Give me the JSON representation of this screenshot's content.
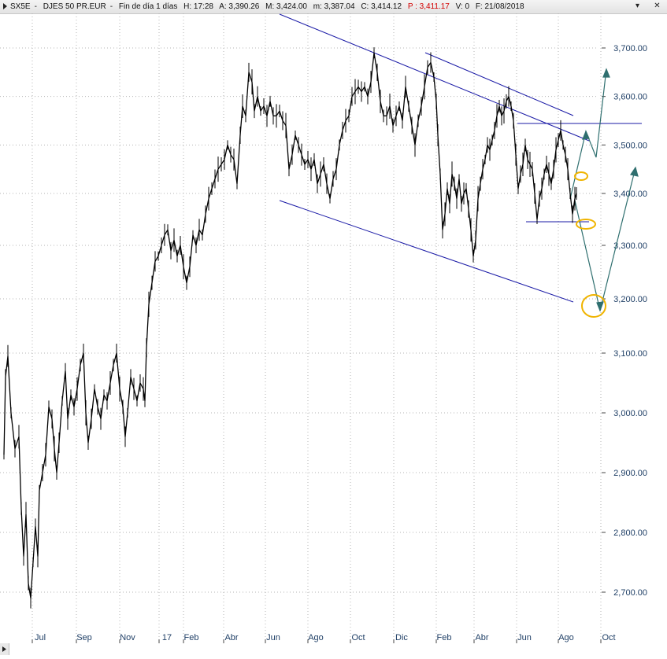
{
  "header": {
    "symbol": "SX5E",
    "name": "DJES 50 PR.EUR",
    "period": "Fin de día 1 días",
    "time": "H: 17:28",
    "open": "A: 3,390.26",
    "high": "M: 3,424.00",
    "low": "m: 3,387.04",
    "close": "C: 3,414.12",
    "last": "P : 3,411.17",
    "volume": "V: 0",
    "date": "F: 21/08/2018"
  },
  "window_buttons": {
    "minimize": "▾",
    "close": "✕"
  },
  "colors": {
    "price": "#000000",
    "trendline": "#1a1aa6",
    "projection": "#2f6f6f",
    "marker": "#f0b400",
    "grid": "#b4b4b4",
    "axis_text": "#1f3f66"
  },
  "chart_data": {
    "type": "line",
    "title": "",
    "xlabel": "",
    "ylabel": "",
    "ylim": [
      2650,
      3760
    ],
    "grid": true,
    "y_ticks": [
      "3,700.00",
      "3,600.00",
      "3,500.00",
      "3,400.00",
      "3,300.00",
      "3,200.00",
      "3,100.00",
      "3,000.00",
      "2,900.00",
      "2,800.00",
      "2,700.00"
    ],
    "x_ticks": [
      "Jul",
      "Sep",
      "Nov",
      "17",
      "Feb",
      "Abr",
      "Jun",
      "Ago",
      "Oct",
      "Dic",
      "Feb",
      "Abr",
      "Jun",
      "Ago",
      "Oct"
    ],
    "series": [
      {
        "values": [
          [
            0,
            2930
          ],
          [
            2,
            3060
          ],
          [
            5,
            3095
          ],
          [
            9,
            3000
          ],
          [
            14,
            2940
          ],
          [
            19,
            2960
          ],
          [
            22,
            2840
          ],
          [
            25,
            2760
          ],
          [
            28,
            2830
          ],
          [
            31,
            2715
          ],
          [
            34,
            2690
          ],
          [
            37,
            2750
          ],
          [
            40,
            2810
          ],
          [
            43,
            2760
          ],
          [
            45,
            2870
          ],
          [
            49,
            2900
          ],
          [
            53,
            2930
          ],
          [
            57,
            3010
          ],
          [
            61,
            2990
          ],
          [
            64,
            2940
          ],
          [
            67,
            2900
          ],
          [
            70,
            2950
          ],
          [
            74,
            3020
          ],
          [
            78,
            3070
          ],
          [
            81,
            2990
          ],
          [
            85,
            3030
          ],
          [
            89,
            3010
          ],
          [
            93,
            3040
          ],
          [
            97,
            3080
          ],
          [
            101,
            3100
          ],
          [
            104,
            3000
          ],
          [
            107,
            2950
          ],
          [
            111,
            2990
          ],
          [
            115,
            3040
          ],
          [
            119,
            3010
          ],
          [
            123,
            2990
          ],
          [
            127,
            3030
          ],
          [
            131,
            3020
          ],
          [
            135,
            3050
          ],
          [
            139,
            3080
          ],
          [
            143,
            3100
          ],
          [
            147,
            3040
          ],
          [
            151,
            3010
          ],
          [
            154,
            2960
          ],
          [
            157,
            3000
          ],
          [
            161,
            3060
          ],
          [
            165,
            3040
          ],
          [
            169,
            3020
          ],
          [
            173,
            3050
          ],
          [
            177,
            3040
          ],
          [
            179,
            3020
          ],
          [
            181,
            3110
          ],
          [
            184,
            3190
          ],
          [
            188,
            3230
          ],
          [
            192,
            3270
          ],
          [
            196,
            3280
          ],
          [
            200,
            3300
          ],
          [
            204,
            3320
          ],
          [
            208,
            3330
          ],
          [
            212,
            3290
          ],
          [
            216,
            3310
          ],
          [
            220,
            3280
          ],
          [
            224,
            3300
          ],
          [
            228,
            3260
          ],
          [
            232,
            3230
          ],
          [
            236,
            3260
          ],
          [
            240,
            3320
          ],
          [
            244,
            3300
          ],
          [
            248,
            3330
          ],
          [
            252,
            3320
          ],
          [
            256,
            3360
          ],
          [
            260,
            3390
          ],
          [
            264,
            3410
          ],
          [
            268,
            3430
          ],
          [
            272,
            3450
          ],
          [
            276,
            3460
          ],
          [
            280,
            3470
          ],
          [
            284,
            3500
          ],
          [
            288,
            3480
          ],
          [
            292,
            3470
          ],
          [
            296,
            3420
          ],
          [
            300,
            3520
          ],
          [
            303,
            3580
          ],
          [
            307,
            3560
          ],
          [
            311,
            3650
          ],
          [
            315,
            3630
          ],
          [
            318,
            3570
          ],
          [
            322,
            3600
          ],
          [
            326,
            3570
          ],
          [
            330,
            3580
          ],
          [
            334,
            3560
          ],
          [
            338,
            3590
          ],
          [
            342,
            3560
          ],
          [
            346,
            3560
          ],
          [
            350,
            3570
          ],
          [
            354,
            3550
          ],
          [
            358,
            3540
          ],
          [
            362,
            3450
          ],
          [
            366,
            3480
          ],
          [
            370,
            3520
          ],
          [
            374,
            3500
          ],
          [
            378,
            3480
          ],
          [
            382,
            3460
          ],
          [
            386,
            3470
          ],
          [
            390,
            3450
          ],
          [
            394,
            3470
          ],
          [
            398,
            3420
          ],
          [
            402,
            3440
          ],
          [
            406,
            3460
          ],
          [
            410,
            3420
          ],
          [
            414,
            3390
          ],
          [
            418,
            3430
          ],
          [
            422,
            3450
          ],
          [
            426,
            3500
          ],
          [
            430,
            3530
          ],
          [
            434,
            3550
          ],
          [
            438,
            3560
          ],
          [
            442,
            3600
          ],
          [
            446,
            3610
          ],
          [
            450,
            3620
          ],
          [
            454,
            3610
          ],
          [
            458,
            3620
          ],
          [
            462,
            3600
          ],
          [
            466,
            3630
          ],
          [
            470,
            3690
          ],
          [
            474,
            3650
          ],
          [
            478,
            3590
          ],
          [
            482,
            3560
          ],
          [
            486,
            3560
          ],
          [
            490,
            3580
          ],
          [
            494,
            3540
          ],
          [
            498,
            3560
          ],
          [
            502,
            3580
          ],
          [
            506,
            3550
          ],
          [
            510,
            3620
          ],
          [
            514,
            3580
          ],
          [
            518,
            3540
          ],
          [
            522,
            3500
          ],
          [
            526,
            3550
          ],
          [
            530,
            3580
          ],
          [
            534,
            3620
          ],
          [
            538,
            3660
          ],
          [
            542,
            3670
          ],
          [
            546,
            3640
          ],
          [
            549,
            3590
          ],
          [
            551,
            3520
          ],
          [
            554,
            3440
          ],
          [
            557,
            3330
          ],
          [
            560,
            3360
          ],
          [
            563,
            3410
          ],
          [
            566,
            3380
          ],
          [
            569,
            3440
          ],
          [
            572,
            3420
          ],
          [
            575,
            3390
          ],
          [
            578,
            3430
          ],
          [
            581,
            3380
          ],
          [
            584,
            3400
          ],
          [
            587,
            3410
          ],
          [
            590,
            3370
          ],
          [
            593,
            3330
          ],
          [
            596,
            3280
          ],
          [
            599,
            3310
          ],
          [
            602,
            3390
          ],
          [
            605,
            3420
          ],
          [
            608,
            3450
          ],
          [
            611,
            3470
          ],
          [
            614,
            3500
          ],
          [
            617,
            3490
          ],
          [
            620,
            3510
          ],
          [
            623,
            3530
          ],
          [
            626,
            3560
          ],
          [
            629,
            3580
          ],
          [
            632,
            3560
          ],
          [
            635,
            3570
          ],
          [
            638,
            3590
          ],
          [
            641,
            3600
          ],
          [
            644,
            3580
          ],
          [
            647,
            3550
          ],
          [
            650,
            3480
          ],
          [
            653,
            3410
          ],
          [
            656,
            3440
          ],
          [
            659,
            3460
          ],
          [
            662,
            3500
          ],
          [
            665,
            3470
          ],
          [
            668,
            3460
          ],
          [
            671,
            3450
          ],
          [
            674,
            3400
          ],
          [
            677,
            3350
          ],
          [
            680,
            3390
          ],
          [
            683,
            3410
          ],
          [
            686,
            3440
          ],
          [
            689,
            3460
          ],
          [
            692,
            3440
          ],
          [
            695,
            3420
          ],
          [
            698,
            3450
          ],
          [
            701,
            3490
          ],
          [
            704,
            3510
          ],
          [
            707,
            3530
          ],
          [
            710,
            3500
          ],
          [
            713,
            3480
          ],
          [
            716,
            3450
          ],
          [
            719,
            3400
          ],
          [
            722,
            3360
          ],
          [
            725,
            3390
          ],
          [
            727,
            3400
          ]
        ]
      }
    ]
  }
}
